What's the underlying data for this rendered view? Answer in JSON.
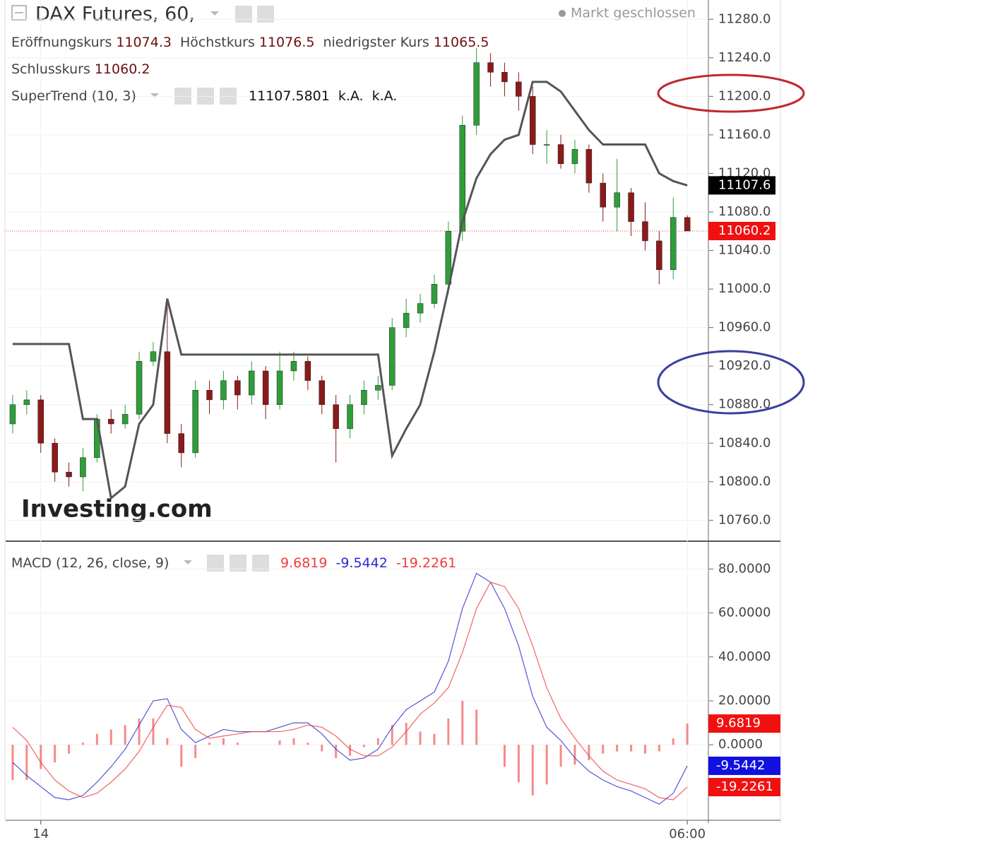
{
  "chart_data": [
    {
      "type": "candlestick",
      "title": "DAX Futures, 60,",
      "status": "Markt geschlossen",
      "watermark": "Investing.com",
      "ohlc_legend": [
        "Eröffnungskurs",
        "Höchstkurs",
        "niedrigster Kurs",
        "Schlusskurs"
      ],
      "categories": [
        null,
        null,
        null,
        null,
        null,
        null,
        null,
        null,
        null,
        null,
        null,
        null,
        null,
        null,
        null,
        null,
        null,
        null,
        null,
        null,
        null,
        null,
        null,
        null,
        null,
        null,
        null,
        null,
        null,
        null,
        null,
        null,
        null,
        null,
        null,
        null,
        null,
        null,
        null,
        null,
        null,
        null,
        null,
        null,
        null,
        null,
        null,
        null,
        null
      ],
      "xlim": [
        -0.5,
        49.5
      ],
      "ylim": [
        10739,
        11300
      ],
      "grid": true,
      "up_color": "#2e9e3a",
      "down_color": "#8b1a1a",
      "open": [
        10860,
        10880,
        10885,
        10840,
        10810,
        10805,
        10825,
        10865,
        10860,
        10870,
        10925,
        10935,
        10850,
        10830,
        10895,
        10885,
        10905,
        10890,
        10915,
        10880,
        10915,
        10925,
        10905,
        10880,
        10855,
        10880,
        10895,
        10900,
        10960,
        10975,
        10985,
        11005,
        11060,
        11170,
        11235,
        11225,
        11215,
        11200,
        11150,
        11150,
        11130,
        11145,
        11110,
        11085,
        11100,
        11070,
        11050,
        11020,
        11074.3
      ],
      "high": [
        10890,
        10895,
        10890,
        10845,
        10820,
        10835,
        10870,
        10875,
        10880,
        10935,
        10945,
        10990,
        10860,
        10905,
        10905,
        10915,
        10910,
        10925,
        10920,
        10935,
        10935,
        10930,
        10910,
        10890,
        10890,
        10905,
        10910,
        10970,
        10990,
        10995,
        11015,
        11070,
        11180,
        11250,
        11245,
        11235,
        11225,
        11210,
        11165,
        11160,
        11155,
        11150,
        11120,
        11135,
        11105,
        11090,
        11060,
        11095,
        11076.5
      ],
      "low": [
        10850,
        10870,
        10830,
        10800,
        10795,
        10790,
        10820,
        10850,
        10855,
        10865,
        10920,
        10840,
        10815,
        10825,
        10870,
        10875,
        10875,
        10880,
        10865,
        10875,
        10905,
        10895,
        10870,
        10820,
        10845,
        10870,
        10885,
        10895,
        10950,
        10965,
        10980,
        10995,
        11050,
        11160,
        11210,
        11200,
        11185,
        11140,
        11130,
        11125,
        11120,
        11100,
        11070,
        11060,
        11055,
        11040,
        11005,
        11010,
        11065.5
      ],
      "close": [
        10880,
        10885,
        10840,
        10810,
        10805,
        10825,
        10865,
        10860,
        10870,
        10925,
        10935,
        10850,
        10830,
        10895,
        10885,
        10905,
        10890,
        10915,
        10880,
        10915,
        10925,
        10905,
        10880,
        10855,
        10880,
        10895,
        10900,
        10960,
        10975,
        10985,
        11005,
        11060,
        11170,
        11235,
        11225,
        11215,
        11200,
        11150,
        11150,
        11130,
        11145,
        11110,
        11085,
        11100,
        11070,
        11050,
        11020,
        11074.3,
        11060.2
      ],
      "indicator": {
        "name": "SuperTrend (10, 3)",
        "color": "#555555",
        "legend_values": [
          11107.5801,
          "k.A.",
          "k.A."
        ],
        "values": [
          10943,
          10943,
          10943,
          10943,
          10943,
          10865,
          10865,
          10783,
          10795,
          10860,
          10880,
          10990,
          10932,
          10932,
          10932,
          10932,
          10932,
          10932,
          10932,
          10932,
          10932,
          10932,
          10932,
          10932,
          10932,
          10932,
          10932,
          10827,
          10855,
          10880,
          10935,
          11000,
          11070,
          11115,
          11140,
          11155,
          11160,
          11215,
          11215,
          11205,
          11185,
          11165,
          11150,
          11150,
          11150,
          11150,
          11120,
          11112,
          11107.5801
        ]
      },
      "tag": {
        "value": 11107.6,
        "color": "#000000"
      },
      "yticks": [
        {
          "value": 11280,
          "label": "11280.0"
        },
        {
          "value": 11240,
          "label": "11240.0"
        },
        {
          "value": 11200,
          "label": "11200.0"
        },
        {
          "value": 11160,
          "label": "11160.0"
        },
        {
          "value": 11120,
          "label": "11120.0"
        },
        {
          "value": 11080,
          "label": "11080.0"
        },
        {
          "value": 11040,
          "label": "11040.0"
        },
        {
          "value": 11000,
          "label": "11000.0"
        },
        {
          "value": 10960,
          "label": "10960.0"
        },
        {
          "value": 10920,
          "label": "10920.0"
        },
        {
          "value": 10880,
          "label": "10880.0"
        },
        {
          "value": 10840,
          "label": "10840.0"
        },
        {
          "value": 10800,
          "label": "10800.0"
        },
        {
          "value": 10760,
          "label": "10760.0"
        }
      ]
    },
    {
      "type": "macd",
      "title": "MACD (12, 26, close, 9)",
      "categories": [
        null,
        null,
        null,
        null,
        null,
        null,
        null,
        null,
        null,
        null,
        null,
        null,
        null,
        null,
        null,
        null,
        null,
        null,
        null,
        null,
        null,
        null,
        null,
        null,
        null,
        null,
        null,
        null,
        null,
        null,
        null,
        null,
        null,
        null,
        null,
        null,
        null,
        null,
        null,
        null,
        null,
        null,
        null,
        null,
        null,
        null,
        null,
        null,
        null
      ],
      "xlim": [
        -0.5,
        49.5
      ],
      "ylim": [
        -34,
        92
      ],
      "xticks": [
        {
          "value": 2,
          "label": "14"
        },
        {
          "value": 48,
          "label": "06:00"
        }
      ],
      "yticks": [
        {
          "value": 80,
          "label": "80.0000"
        },
        {
          "value": 60,
          "label": "60.0000"
        },
        {
          "value": 40,
          "label": "40.0000"
        },
        {
          "value": 20,
          "label": "20.0000"
        },
        {
          "value": 0,
          "label": "0.0000"
        }
      ],
      "series": [
        {
          "kind": "histogram",
          "color": "#f03c3c",
          "values": [
            -16,
            -16,
            -11,
            -8,
            -4,
            1,
            5,
            7,
            9,
            12,
            12,
            3,
            -10,
            -6,
            1,
            3,
            1,
            0,
            0,
            2,
            3,
            1,
            -3,
            -6,
            -5,
            -1,
            3,
            9,
            10,
            6,
            5,
            12,
            20,
            16,
            0,
            -10,
            -17,
            -23,
            -18,
            -10,
            -9,
            -7,
            -4,
            -3,
            -3,
            -4,
            -3,
            3,
            9.6819
          ]
        },
        {
          "kind": "line",
          "color": "#2a2ad0",
          "values": [
            -8,
            -14,
            -19,
            -24,
            -25,
            -23,
            -17,
            -10,
            -2,
            9,
            20,
            21,
            7,
            1,
            4,
            7,
            6,
            6,
            6,
            8,
            10,
            10,
            5,
            -2,
            -7,
            -6,
            -2,
            8,
            16,
            20,
            24,
            38,
            62,
            78,
            74,
            62,
            45,
            22,
            8,
            2,
            -6,
            -12,
            -16,
            -19,
            -21,
            -24,
            -27,
            -22,
            -9.5442
          ]
        },
        {
          "kind": "line",
          "color": "#f03c3c",
          "values": [
            8,
            2,
            -8,
            -16,
            -21,
            -24,
            -22,
            -17,
            -11,
            -3,
            8,
            18,
            17,
            7,
            3,
            4,
            5,
            6,
            6,
            6,
            7,
            9,
            8,
            4,
            -2,
            -5,
            -5,
            -1,
            6,
            14,
            19,
            26,
            42,
            62,
            74,
            72,
            62,
            45,
            26,
            12,
            3,
            -5,
            -12,
            -16,
            -18,
            -20,
            -24,
            -25,
            -19.2261
          ]
        }
      ]
    }
  ]
}
